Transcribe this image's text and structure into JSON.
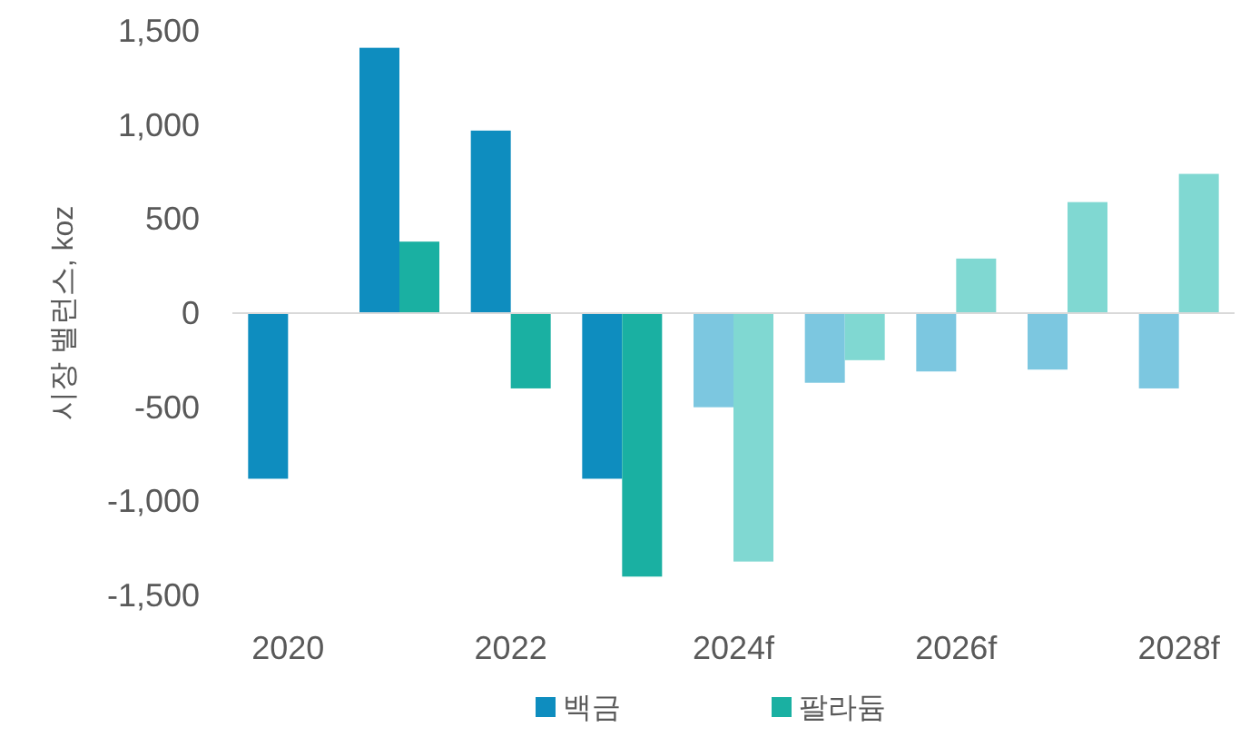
{
  "chart_data": {
    "type": "bar",
    "ylabel": "시장 밸런스, koz",
    "categories": [
      "2020",
      null,
      "2022",
      null,
      "2024f",
      null,
      "2026f",
      null,
      "2028f"
    ],
    "series": [
      {
        "name": "백금",
        "color": "#0e8dbf",
        "colors": [
          "#0e8dbf",
          "#0e8dbf",
          "#0e8dbf",
          "#0e8dbf",
          "#7cc7e0",
          "#7cc7e0",
          "#7cc7e0",
          "#7cc7e0",
          "#7cc7e0"
        ],
        "values": [
          -880,
          1410,
          970,
          -880,
          -500,
          -370,
          -310,
          -300,
          -400
        ]
      },
      {
        "name": "팔라듐",
        "color": "#1ab0a2",
        "colors": [
          null,
          "#1ab0a2",
          "#1ab0a2",
          "#1ab0a2",
          "#80d8d2",
          "#80d8d2",
          "#80d8d2",
          "#80d8d2",
          "#80d8d2"
        ],
        "values": [
          null,
          380,
          -400,
          -1400,
          -1320,
          -250,
          290,
          590,
          740
        ]
      }
    ],
    "ylim": [
      -1500,
      1500
    ],
    "yticks": [
      {
        "value": -1500,
        "label": "-1,500"
      },
      {
        "value": -1000,
        "label": "-1,000"
      },
      {
        "value": -500,
        "label": "-500"
      },
      0,
      500,
      {
        "value": 1000,
        "label": "1,000"
      },
      {
        "value": 1500,
        "label": "1,500"
      }
    ],
    "legend": "bottom"
  }
}
